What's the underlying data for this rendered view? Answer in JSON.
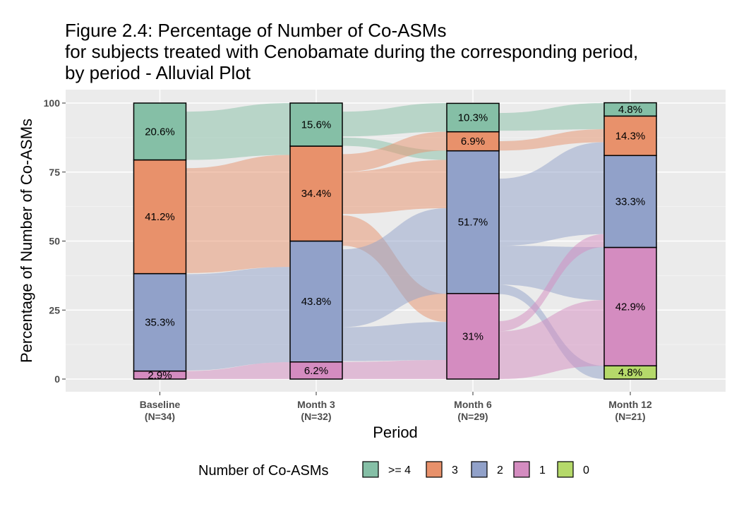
{
  "chart_data": {
    "type": "alluvial",
    "title": [
      "Figure 2.4: Percentage of Number of Co-ASMs",
      "for subjects treated with Cenobamate during the corresponding period,",
      "by period - Alluvial Plot"
    ],
    "xlabel": "Period",
    "ylabel": "Percentage of Number of Co-ASMs",
    "ylim": [
      0,
      100
    ],
    "yticks": [
      0,
      25,
      50,
      75,
      100
    ],
    "grid": true,
    "legend": {
      "title": "Number of Co-ASMs",
      "placement": "bottom",
      "levels": [
        ">= 4",
        "3",
        "2",
        "1",
        "0"
      ]
    },
    "colors": {
      ">= 4": "#85bfa6",
      "3": "#e8916b",
      "2": "#91a1c9",
      "1": "#d48cc0",
      "0": "#b5d96a"
    },
    "periods": [
      {
        "name": "Baseline",
        "n_label": "(N=34)",
        "values": {
          ">= 4": 20.6,
          "3": 41.2,
          "2": 35.3,
          "1": 2.9,
          "0": 0
        },
        "labels": {
          ">= 4": "20.6%",
          "3": "41.2%",
          "2": "35.3%",
          "1": "2.9%"
        }
      },
      {
        "name": "Month 3",
        "n_label": "(N=32)",
        "values": {
          ">= 4": 15.6,
          "3": 34.4,
          "2": 43.8,
          "1": 6.2,
          "0": 0
        },
        "labels": {
          ">= 4": "15.6%",
          "3": "34.4%",
          "2": "43.8%",
          "1": "6.2%"
        }
      },
      {
        "name": "Month 6",
        "n_label": "(N=29)",
        "values": {
          ">= 4": 10.3,
          "3": 6.9,
          "2": 51.7,
          "1": 31,
          "0": 0
        },
        "labels": {
          ">= 4": "10.3%",
          "3": "6.9%",
          "2": "51.7%",
          "1": "31%"
        }
      },
      {
        "name": "Month 12",
        "n_label": "(N=21)",
        "values": {
          ">= 4": 4.8,
          "3": 14.3,
          "2": 33.3,
          "1": 42.9,
          "0": 4.8
        },
        "labels": {
          ">= 4": "4.8%",
          "3": "14.3%",
          "2": "33.3%",
          "1": "42.9%",
          "0": "4.8%"
        }
      }
    ],
    "flows": [
      {
        "from": 0,
        "level": ">= 4",
        "from_range": [
          96.9,
          79.4
        ],
        "to_range": [
          100,
          81.2
        ]
      },
      {
        "from": 0,
        "level": "3",
        "from_range": [
          76.4,
          38.4
        ],
        "to_range": [
          81.2,
          40.6
        ]
      },
      {
        "from": 0,
        "level": "2",
        "from_range": [
          38.0,
          3.1
        ],
        "to_range": [
          40.6,
          6.1
        ]
      },
      {
        "from": 0,
        "level": "1",
        "from_range": [
          2.9,
          0
        ],
        "to_range": [
          6.1,
          0
        ]
      },
      {
        "from": 1,
        "level": ">= 4",
        "from_range": [
          96.9,
          87.9
        ],
        "to_range": [
          100,
          89.6
        ]
      },
      {
        "from": 1,
        "level": ">= 4",
        "from_range": [
          87.5,
          84.5
        ],
        "to_range": [
          82.8,
          79.4
        ]
      },
      {
        "from": 1,
        "level": "3",
        "from_range": [
          81.5,
          75.1
        ],
        "to_range": [
          89.6,
          82.8
        ]
      },
      {
        "from": 1,
        "level": "3",
        "from_range": [
          75.1,
          59.8
        ],
        "to_range": [
          79.4,
          61.9
        ]
      },
      {
        "from": 1,
        "level": "3",
        "from_range": [
          59.3,
          48.3
        ],
        "to_range": [
          30.9,
          20.7
        ]
      },
      {
        "from": 1,
        "level": "2",
        "from_range": [
          47.0,
          18.8
        ],
        "to_range": [
          61.9,
          30.9
        ]
      },
      {
        "from": 1,
        "level": "2",
        "from_range": [
          18.8,
          6.5
        ],
        "to_range": [
          20.7,
          6.9
        ]
      },
      {
        "from": 1,
        "level": "1",
        "from_range": [
          6.2,
          0
        ],
        "to_range": [
          6.9,
          0
        ]
      },
      {
        "from": 2,
        "level": ">= 4",
        "from_range": [
          96.4,
          90.0
        ],
        "to_range": [
          100,
          90.5
        ]
      },
      {
        "from": 2,
        "level": "3",
        "from_range": [
          86.2,
          82.8
        ],
        "to_range": [
          90.5,
          85.8
        ]
      },
      {
        "from": 2,
        "level": "2",
        "from_range": [
          72.6,
          48.3
        ],
        "to_range": [
          85.8,
          52.5
        ]
      },
      {
        "from": 2,
        "level": "2",
        "from_range": [
          48.3,
          34.2
        ],
        "to_range": [
          47.8,
          28.6
        ]
      },
      {
        "from": 2,
        "level": "2",
        "from_range": [
          34.2,
          30.8
        ],
        "to_range": [
          4.8,
          0
        ]
      },
      {
        "from": 2,
        "level": "1",
        "from_range": [
          21.0,
          17.3
        ],
        "to_range": [
          52.5,
          47.8
        ]
      },
      {
        "from": 2,
        "level": "1",
        "from_range": [
          17.3,
          0
        ],
        "to_range": [
          28.6,
          4.8
        ]
      }
    ]
  }
}
